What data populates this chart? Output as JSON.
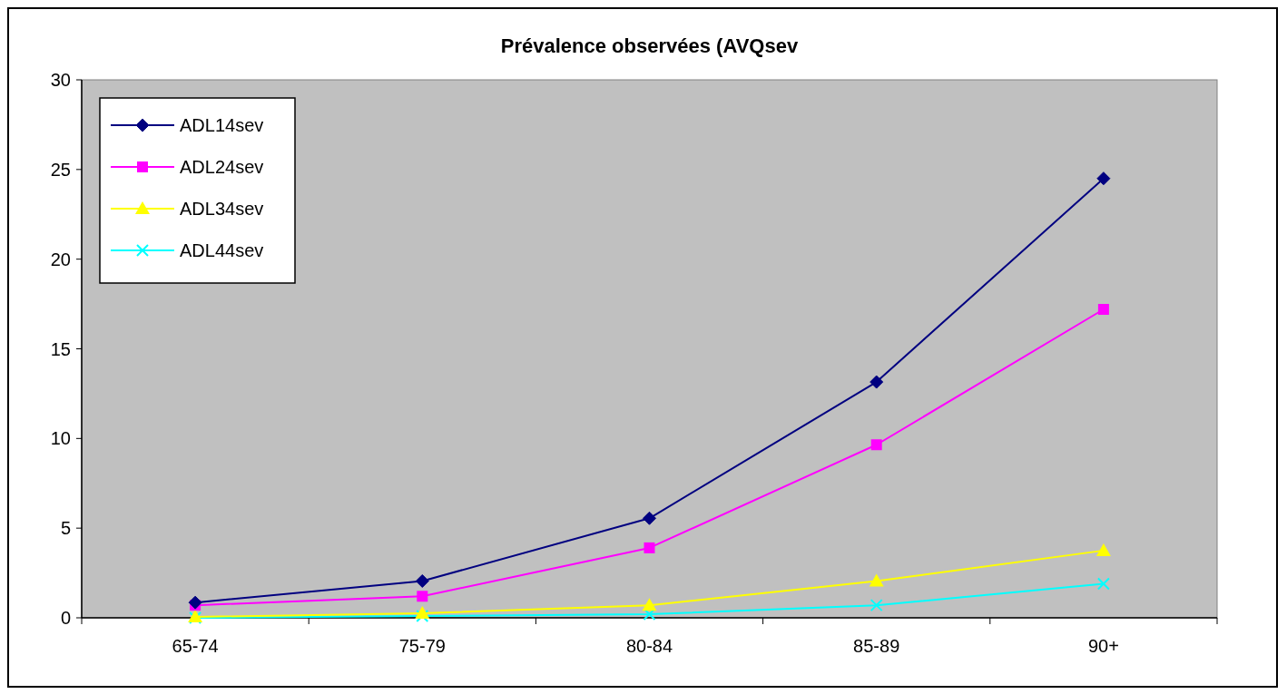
{
  "chart_data": {
    "type": "line",
    "title": "Prévalence observées (AVQsev",
    "categories": [
      "65-74",
      "75-79",
      "80-84",
      "85-89",
      "90+"
    ],
    "series": [
      {
        "name": "ADL14sev",
        "color": "#000080",
        "marker": "diamond",
        "values": [
          0.85,
          2.05,
          5.55,
          13.15,
          24.5
        ]
      },
      {
        "name": "ADL24sev",
        "color": "#ff00ff",
        "marker": "square",
        "values": [
          0.7,
          1.2,
          3.9,
          9.65,
          17.2
        ]
      },
      {
        "name": "ADL34sev",
        "color": "#ffff00",
        "marker": "triangle",
        "values": [
          0.05,
          0.25,
          0.7,
          2.05,
          3.75
        ]
      },
      {
        "name": "ADL44sev",
        "color": "#00ffff",
        "marker": "cross",
        "values": [
          0,
          0.1,
          0.2,
          0.7,
          1.9
        ]
      }
    ],
    "ylim": [
      0,
      30
    ],
    "yticks": [
      0,
      5,
      10,
      15,
      20,
      25,
      30
    ],
    "grid": false,
    "legend": "top left"
  }
}
